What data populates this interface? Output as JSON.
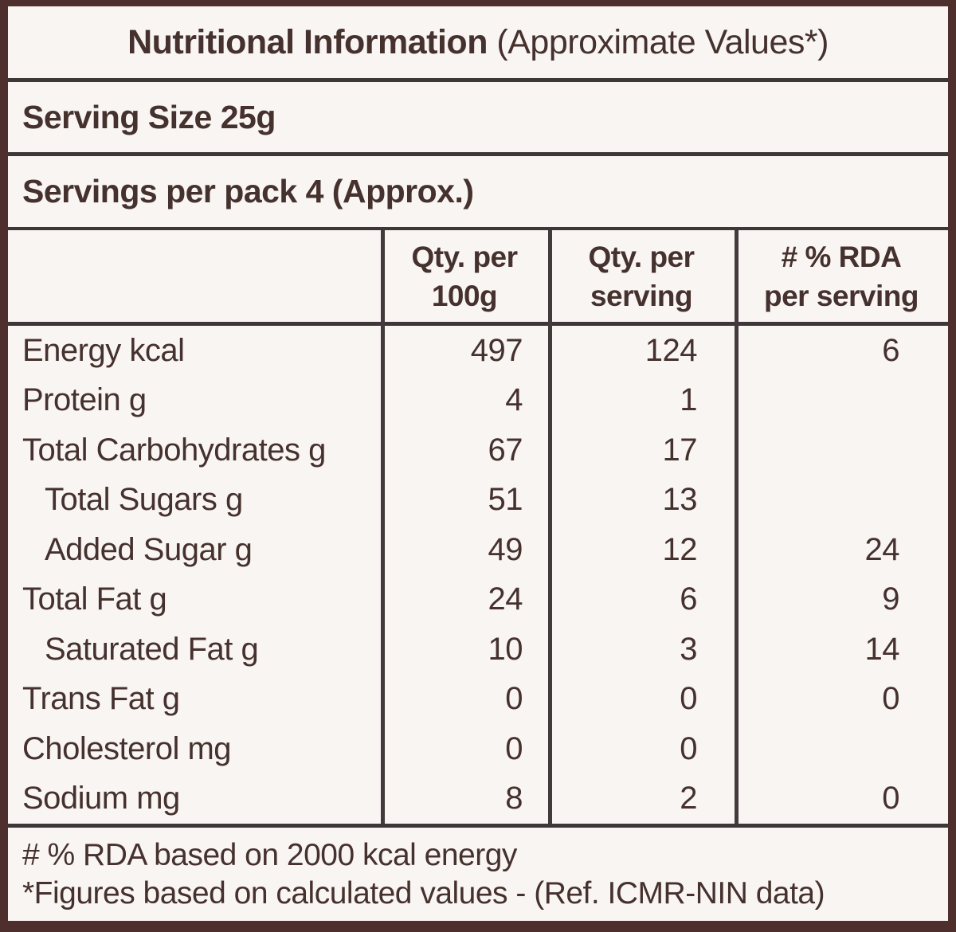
{
  "title": {
    "bold": "Nutritional Information",
    "regular": " (Approximate Values*)"
  },
  "serving_size": "Serving Size 25g",
  "servings_per_pack": "Servings per pack 4 (Approx.)",
  "table": {
    "columns": [
      {
        "line1": "Qty. per",
        "line2": "100g"
      },
      {
        "line1": "Qty. per",
        "line2": "serving"
      },
      {
        "line1": "# % RDA",
        "line2": "per serving"
      }
    ],
    "rows": [
      {
        "label": "Energy kcal",
        "per100g": "497",
        "per_serving": "124",
        "rda_per_serving": "6"
      },
      {
        "label": "Protein g",
        "per100g": "4",
        "per_serving": "1",
        "rda_per_serving": ""
      },
      {
        "label": "Total Carbohydrates g",
        "per100g": "67",
        "per_serving": "17",
        "rda_per_serving": ""
      },
      {
        "label": "Total Sugars g",
        "per100g": "51",
        "per_serving": "13",
        "rda_per_serving": ""
      },
      {
        "label": "Added Sugar g",
        "per100g": "49",
        "per_serving": "12",
        "rda_per_serving": "24"
      },
      {
        "label": "Total Fat g",
        "per100g": "24",
        "per_serving": "6",
        "rda_per_serving": "9"
      },
      {
        "label": "Saturated Fat g",
        "per100g": "10",
        "per_serving": "3",
        "rda_per_serving": "14"
      },
      {
        "label": "Trans Fat g",
        "per100g": "0",
        "per_serving": "0",
        "rda_per_serving": "0"
      },
      {
        "label": "Cholesterol mg",
        "per100g": "0",
        "per_serving": "0",
        "rda_per_serving": ""
      },
      {
        "label": "Sodium mg",
        "per100g": "8",
        "per_serving": "2",
        "rda_per_serving": "0"
      }
    ]
  },
  "footnotes": {
    "line1": "# % RDA based on 2000 kcal energy",
    "line2": "*Figures based on calculated values - (Ref. ICMR-NIN data)"
  },
  "colors": {
    "frame_border": "#4f2f2d",
    "rule_line": "#3e3638",
    "text": "#45312d",
    "background": "#f9f5f3"
  }
}
